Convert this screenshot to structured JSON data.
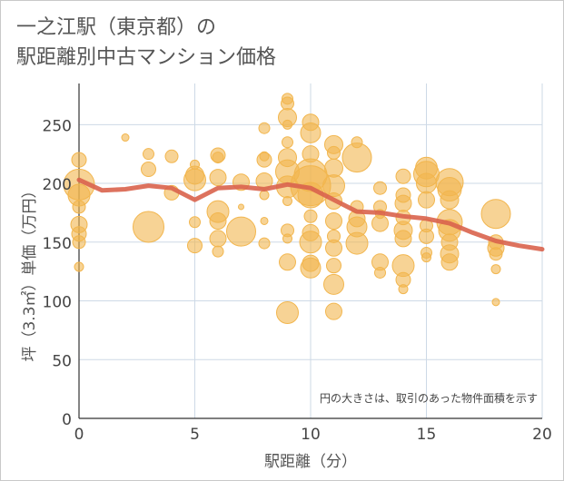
{
  "title_line1": "一之江駅（東京都）の",
  "title_line2": "駅距離別中古マンション価格",
  "chart_data": {
    "type": "scatter",
    "xlabel": "駅距離（分）",
    "ylabel": "坪（3.3㎡）単価（万円）",
    "xlim": [
      0,
      20
    ],
    "ylim": [
      0,
      285
    ],
    "xticks": [
      0,
      5,
      10,
      15,
      20
    ],
    "yticks": [
      0,
      50,
      100,
      150,
      200,
      250
    ],
    "grid": true,
    "annotation": "円の大きさは、取引のあった物件面積を示す",
    "bubble_color": "#f2b64e",
    "line_color": "#d9634c",
    "bubbles": [
      {
        "x": 0,
        "y": 129,
        "s": 5
      },
      {
        "x": 0,
        "y": 150,
        "s": 7
      },
      {
        "x": 0,
        "y": 157,
        "s": 8
      },
      {
        "x": 0,
        "y": 165,
        "s": 9
      },
      {
        "x": 0,
        "y": 180,
        "s": 7
      },
      {
        "x": 0,
        "y": 190,
        "s": 12
      },
      {
        "x": 0,
        "y": 199,
        "s": 17
      },
      {
        "x": 0,
        "y": 220,
        "s": 8
      },
      {
        "x": 2,
        "y": 239,
        "s": 4
      },
      {
        "x": 3,
        "y": 225,
        "s": 6
      },
      {
        "x": 3,
        "y": 212,
        "s": 8
      },
      {
        "x": 3,
        "y": 163,
        "s": 17
      },
      {
        "x": 4,
        "y": 223,
        "s": 7
      },
      {
        "x": 4,
        "y": 192,
        "s": 8
      },
      {
        "x": 5,
        "y": 216,
        "s": 5
      },
      {
        "x": 5,
        "y": 207,
        "s": 10
      },
      {
        "x": 5,
        "y": 203,
        "s": 12
      },
      {
        "x": 5,
        "y": 167,
        "s": 6
      },
      {
        "x": 5,
        "y": 147,
        "s": 8
      },
      {
        "x": 6,
        "y": 224,
        "s": 8
      },
      {
        "x": 6,
        "y": 222,
        "s": 6
      },
      {
        "x": 6,
        "y": 205,
        "s": 9
      },
      {
        "x": 6,
        "y": 176,
        "s": 12
      },
      {
        "x": 6,
        "y": 168,
        "s": 9
      },
      {
        "x": 6,
        "y": 153,
        "s": 9
      },
      {
        "x": 6,
        "y": 142,
        "s": 6
      },
      {
        "x": 7,
        "y": 201,
        "s": 9
      },
      {
        "x": 7,
        "y": 180,
        "s": 3
      },
      {
        "x": 7,
        "y": 159,
        "s": 16
      },
      {
        "x": 8,
        "y": 247,
        "s": 6
      },
      {
        "x": 8,
        "y": 223,
        "s": 5
      },
      {
        "x": 8,
        "y": 220,
        "s": 8
      },
      {
        "x": 8,
        "y": 202,
        "s": 9
      },
      {
        "x": 8,
        "y": 190,
        "s": 5
      },
      {
        "x": 8,
        "y": 168,
        "s": 4
      },
      {
        "x": 8,
        "y": 149,
        "s": 6
      },
      {
        "x": 9,
        "y": 272,
        "s": 6
      },
      {
        "x": 9,
        "y": 268,
        "s": 7
      },
      {
        "x": 9,
        "y": 256,
        "s": 10
      },
      {
        "x": 9,
        "y": 250,
        "s": 5
      },
      {
        "x": 9,
        "y": 235,
        "s": 6
      },
      {
        "x": 9,
        "y": 222,
        "s": 10
      },
      {
        "x": 9,
        "y": 210,
        "s": 13
      },
      {
        "x": 9,
        "y": 197,
        "s": 12
      },
      {
        "x": 9,
        "y": 185,
        "s": 5
      },
      {
        "x": 9,
        "y": 160,
        "s": 7
      },
      {
        "x": 9,
        "y": 153,
        "s": 5
      },
      {
        "x": 9,
        "y": 133,
        "s": 9
      },
      {
        "x": 9,
        "y": 90,
        "s": 12
      },
      {
        "x": 10,
        "y": 252,
        "s": 9
      },
      {
        "x": 10,
        "y": 243,
        "s": 11
      },
      {
        "x": 10,
        "y": 225,
        "s": 9
      },
      {
        "x": 10,
        "y": 207,
        "s": 18
      },
      {
        "x": 10,
        "y": 198,
        "s": 22
      },
      {
        "x": 10,
        "y": 190,
        "s": 14
      },
      {
        "x": 10,
        "y": 172,
        "s": 7
      },
      {
        "x": 10,
        "y": 158,
        "s": 9
      },
      {
        "x": 10,
        "y": 150,
        "s": 12
      },
      {
        "x": 10,
        "y": 132,
        "s": 9
      },
      {
        "x": 10,
        "y": 128,
        "s": 11
      },
      {
        "x": 11,
        "y": 233,
        "s": 10
      },
      {
        "x": 11,
        "y": 226,
        "s": 7
      },
      {
        "x": 11,
        "y": 213,
        "s": 10
      },
      {
        "x": 11,
        "y": 198,
        "s": 12
      },
      {
        "x": 11,
        "y": 185,
        "s": 9
      },
      {
        "x": 11,
        "y": 168,
        "s": 9
      },
      {
        "x": 11,
        "y": 155,
        "s": 7
      },
      {
        "x": 11,
        "y": 145,
        "s": 9
      },
      {
        "x": 11,
        "y": 130,
        "s": 8
      },
      {
        "x": 11,
        "y": 114,
        "s": 11
      },
      {
        "x": 11,
        "y": 91,
        "s": 9
      },
      {
        "x": 12,
        "y": 235,
        "s": 6
      },
      {
        "x": 12,
        "y": 222,
        "s": 16
      },
      {
        "x": 12,
        "y": 180,
        "s": 7
      },
      {
        "x": 12,
        "y": 170,
        "s": 9
      },
      {
        "x": 12,
        "y": 163,
        "s": 11
      },
      {
        "x": 12,
        "y": 149,
        "s": 12
      },
      {
        "x": 13,
        "y": 196,
        "s": 7
      },
      {
        "x": 13,
        "y": 180,
        "s": 7
      },
      {
        "x": 13,
        "y": 174,
        "s": 5
      },
      {
        "x": 13,
        "y": 166,
        "s": 9
      },
      {
        "x": 13,
        "y": 133,
        "s": 9
      },
      {
        "x": 13,
        "y": 124,
        "s": 6
      },
      {
        "x": 14,
        "y": 206,
        "s": 8
      },
      {
        "x": 14,
        "y": 190,
        "s": 8
      },
      {
        "x": 14,
        "y": 183,
        "s": 9
      },
      {
        "x": 14,
        "y": 171,
        "s": 8
      },
      {
        "x": 14,
        "y": 160,
        "s": 10
      },
      {
        "x": 14,
        "y": 153,
        "s": 9
      },
      {
        "x": 14,
        "y": 130,
        "s": 12
      },
      {
        "x": 14,
        "y": 118,
        "s": 8
      },
      {
        "x": 14,
        "y": 110,
        "s": 5
      },
      {
        "x": 15,
        "y": 213,
        "s": 12
      },
      {
        "x": 15,
        "y": 208,
        "s": 14
      },
      {
        "x": 15,
        "y": 200,
        "s": 11
      },
      {
        "x": 15,
        "y": 186,
        "s": 9
      },
      {
        "x": 15,
        "y": 164,
        "s": 7
      },
      {
        "x": 15,
        "y": 155,
        "s": 8
      },
      {
        "x": 15,
        "y": 141,
        "s": 6
      },
      {
        "x": 15,
        "y": 137,
        "s": 5
      },
      {
        "x": 16,
        "y": 201,
        "s": 15
      },
      {
        "x": 16,
        "y": 195,
        "s": 13
      },
      {
        "x": 16,
        "y": 186,
        "s": 10
      },
      {
        "x": 16,
        "y": 167,
        "s": 14
      },
      {
        "x": 16,
        "y": 160,
        "s": 12
      },
      {
        "x": 16,
        "y": 150,
        "s": 9
      },
      {
        "x": 16,
        "y": 140,
        "s": 10
      },
      {
        "x": 16,
        "y": 133,
        "s": 9
      },
      {
        "x": 18,
        "y": 174,
        "s": 16
      },
      {
        "x": 18,
        "y": 150,
        "s": 8
      },
      {
        "x": 18,
        "y": 145,
        "s": 9
      },
      {
        "x": 18,
        "y": 140,
        "s": 7
      },
      {
        "x": 18,
        "y": 127,
        "s": 5
      },
      {
        "x": 18,
        "y": 99,
        "s": 4
      }
    ],
    "trend": {
      "x": [
        0,
        1,
        2,
        3,
        4,
        5,
        6,
        7,
        8,
        9,
        10,
        11,
        12,
        13,
        14,
        15,
        16,
        17,
        18,
        19,
        20
      ],
      "y": [
        203,
        194,
        195,
        198,
        196,
        186,
        196,
        197,
        195,
        199,
        196,
        186,
        176,
        175,
        172,
        170,
        166,
        158,
        151,
        147,
        144
      ]
    }
  }
}
